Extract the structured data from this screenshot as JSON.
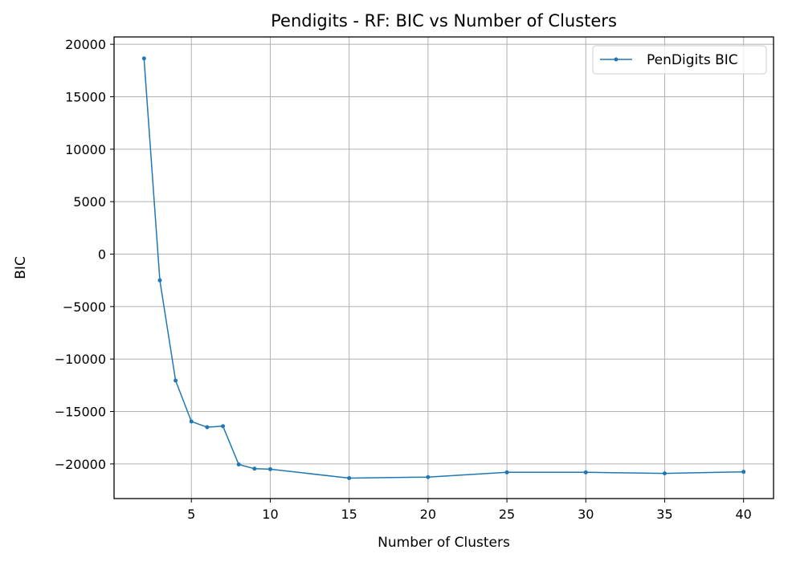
{
  "chart_data": {
    "type": "line",
    "title": "Pendigits - RF: BIC vs Number of Clusters",
    "xlabel": "Number of Clusters",
    "ylabel": "BIC",
    "xlim": [
      0.1,
      41.9
    ],
    "ylim": [
      -23300,
      20700
    ],
    "xticks": [
      5,
      10,
      15,
      20,
      25,
      30,
      35,
      40
    ],
    "xtick_labels": [
      "5",
      "10",
      "15",
      "20",
      "25",
      "30",
      "35",
      "40"
    ],
    "yticks": [
      -20000,
      -15000,
      -10000,
      -5000,
      0,
      5000,
      10000,
      15000,
      20000
    ],
    "ytick_labels": [
      "−20000",
      "−15000",
      "−10000",
      "−5000",
      "0",
      "5000",
      "10000",
      "15000",
      "20000"
    ],
    "grid": true,
    "legend_position": "top-right",
    "series": [
      {
        "name": "PenDigits BIC",
        "color": "#1f77b4",
        "marker": "circle",
        "x": [
          2,
          3,
          4,
          5,
          6,
          7,
          8,
          9,
          10,
          15,
          20,
          25,
          30,
          35,
          40
        ],
        "y": [
          18650,
          -2500,
          -12050,
          -15950,
          -16500,
          -16400,
          -20050,
          -20450,
          -20500,
          -21350,
          -21250,
          -20800,
          -20800,
          -20900,
          -20750
        ]
      }
    ]
  }
}
